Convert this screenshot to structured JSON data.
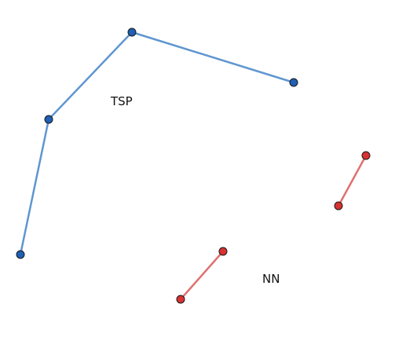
{
  "labels": {
    "tsp": "TSP",
    "nn": "NN"
  },
  "colors": {
    "tsp_line": "#6096d0",
    "tsp_node": "#1f5fb4",
    "nn_line": "#e07070",
    "nn_node": "#d83232",
    "node_stroke": "#1a1a1a"
  }
}
